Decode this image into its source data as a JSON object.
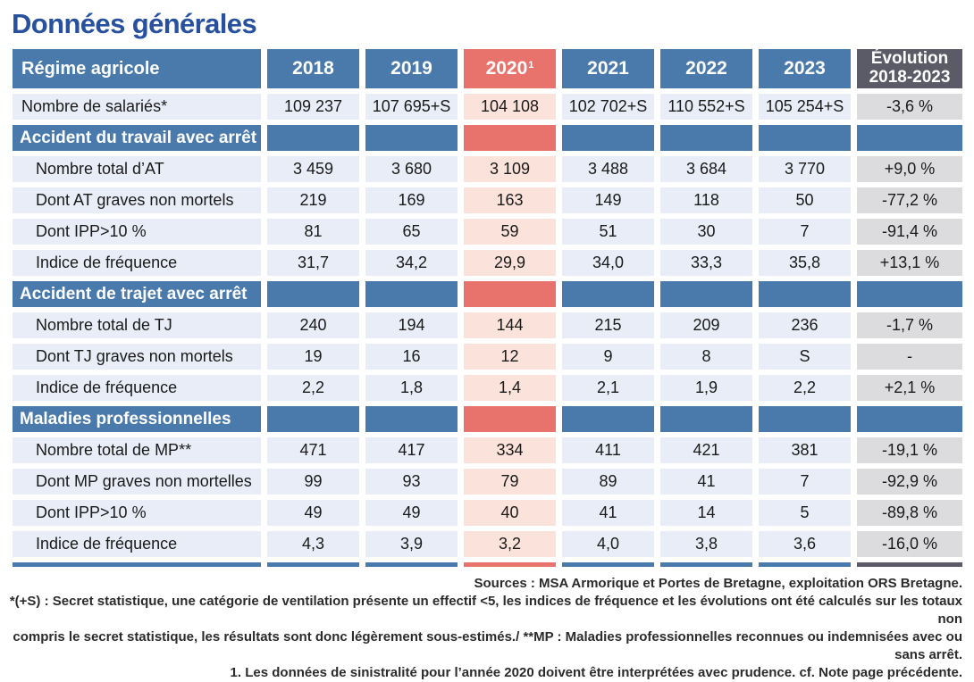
{
  "page": {
    "title": "Données générales"
  },
  "colors": {
    "header_blue": "#4A7AAC",
    "header_red": "#E8736C",
    "header_slate": "#5B5B68",
    "row_blue": "#E9EDF7",
    "row_red": "#FBE2DB",
    "row_gray": "#DCDCDE",
    "title_blue": "#27509E",
    "text_dark": "#1A1A1A"
  },
  "table": {
    "header": {
      "label": "Régime agricole",
      "columns": [
        "2018",
        "2019",
        "2020",
        "2021",
        "2022",
        "2023"
      ],
      "col_2020_superscript": "1",
      "highlight_column_index": 2,
      "evolution": {
        "line1": "Évolution",
        "line2": "2018-2023"
      }
    },
    "rows": [
      {
        "type": "data",
        "indent": false,
        "label": "Nombre de salariés*",
        "values": [
          "109 237",
          "107 695+S",
          "104 108",
          "102 702+S",
          "110 552+S",
          "105 254+S"
        ],
        "evolution": "-3,6 %"
      },
      {
        "type": "section",
        "label": "Accident du travail avec arrêt"
      },
      {
        "type": "data",
        "indent": true,
        "label": "Nombre total d’AT",
        "values": [
          "3 459",
          "3 680",
          "3 109",
          "3 488",
          "3 684",
          "3 770"
        ],
        "evolution": "+9,0 %"
      },
      {
        "type": "data",
        "indent": true,
        "label": "Dont AT graves non mortels",
        "values": [
          "219",
          "169",
          "163",
          "149",
          "118",
          "50"
        ],
        "evolution": "-77,2 %"
      },
      {
        "type": "data",
        "indent": true,
        "label": "Dont IPP>10 %",
        "values": [
          "81",
          "65",
          "59",
          "51",
          "30",
          "7"
        ],
        "evolution": "-91,4 %"
      },
      {
        "type": "data",
        "indent": true,
        "label": "Indice de fréquence",
        "values": [
          "31,7",
          "34,2",
          "29,9",
          "34,0",
          "33,3",
          "35,8"
        ],
        "evolution": "+13,1 %"
      },
      {
        "type": "section",
        "label": "Accident de trajet avec arrêt"
      },
      {
        "type": "data",
        "indent": true,
        "label": "Nombre total de TJ",
        "values": [
          "240",
          "194",
          "144",
          "215",
          "209",
          "236"
        ],
        "evolution": "-1,7 %"
      },
      {
        "type": "data",
        "indent": true,
        "label": "Dont TJ graves non mortels",
        "values": [
          "19",
          "16",
          "12",
          "9",
          "8",
          "S"
        ],
        "evolution": "-"
      },
      {
        "type": "data",
        "indent": true,
        "label": "Indice de fréquence",
        "values": [
          "2,2",
          "1,8",
          "1,4",
          "2,1",
          "1,9",
          "2,2"
        ],
        "evolution": "+2,1 %"
      },
      {
        "type": "section",
        "label": "Maladies professionnelles"
      },
      {
        "type": "data",
        "indent": true,
        "label": "Nombre total de MP**",
        "values": [
          "471",
          "417",
          "334",
          "411",
          "421",
          "381"
        ],
        "evolution": "-19,1 %"
      },
      {
        "type": "data",
        "indent": true,
        "label": "Dont MP graves non mortelles",
        "values": [
          "99",
          "93",
          "79",
          "89",
          "41",
          "7"
        ],
        "evolution": "-92,9 %"
      },
      {
        "type": "data",
        "indent": true,
        "label": "Dont IPP>10 %",
        "values": [
          "49",
          "49",
          "40",
          "41",
          "14",
          "5"
        ],
        "evolution": "-89,8 %"
      },
      {
        "type": "data",
        "indent": true,
        "label": "Indice de fréquence",
        "values": [
          "4,3",
          "3,9",
          "3,2",
          "4,0",
          "3,8",
          "3,6"
        ],
        "evolution": "-16,0 %"
      }
    ]
  },
  "footnotes": {
    "source": "Sources : MSA Armorique et Portes de Bretagne, exploitation ORS Bretagne.",
    "secret_line1": "*(+S) : Secret statistique, une catégorie de ventilation présente un effectif <5, les indices de fréquence et les évolutions ont été calculés sur les totaux non",
    "secret_line2": "compris le secret statistique, les résultats sont donc légèrement sous-estimés./ **MP : Maladies professionnelles reconnues ou indemnisées avec ou sans arrêt.",
    "note_2020": "1. Les données de sinistralité pour l’année 2020 doivent être interprétées avec prudence. cf. Note page précédente."
  }
}
